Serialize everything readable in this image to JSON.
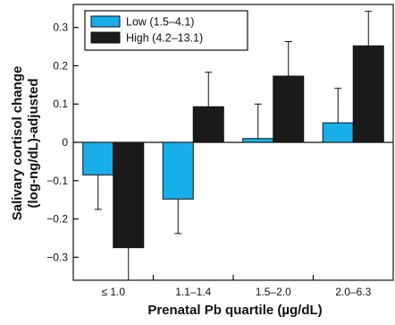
{
  "chart_data": {
    "type": "bar",
    "categories": [
      "≤ 1.0",
      "1.1–1.4",
      "1.5–2.0",
      "2.0–6.3"
    ],
    "series": [
      {
        "name": "Low (1.5–4.1)",
        "values": [
          -0.085,
          -0.148,
          0.01,
          0.051
        ],
        "error": [
          0.09,
          0.09,
          0.09,
          0.09
        ],
        "color": "#18aeea"
      },
      {
        "name": "High (4.2–13.1)",
        "values": [
          -0.275,
          0.093,
          0.173,
          0.252
        ],
        "error": [
          0.085,
          0.09,
          0.09,
          0.09
        ],
        "color": "#1a1a1a"
      }
    ],
    "ylim": [
      -0.36,
      0.36
    ],
    "yticks": [
      {
        "value": 0.3,
        "label": "0.3"
      },
      {
        "value": 0.2,
        "label": "0.2"
      },
      {
        "value": 0.1,
        "label": "0.1"
      },
      {
        "value": 0,
        "label": "0"
      },
      {
        "value": -0.1,
        "label": "−0.1"
      },
      {
        "value": -0.2,
        "label": "−0.2"
      },
      {
        "value": -0.3,
        "label": "−0.3"
      }
    ],
    "xlabel": "Prenatal Pb quartile (µg/dL)",
    "ylabel_lines": [
      "Salivary cortisol change",
      "(log-ng/dL)-adjusted"
    ],
    "legend_position": "top-left",
    "grid": false
  }
}
